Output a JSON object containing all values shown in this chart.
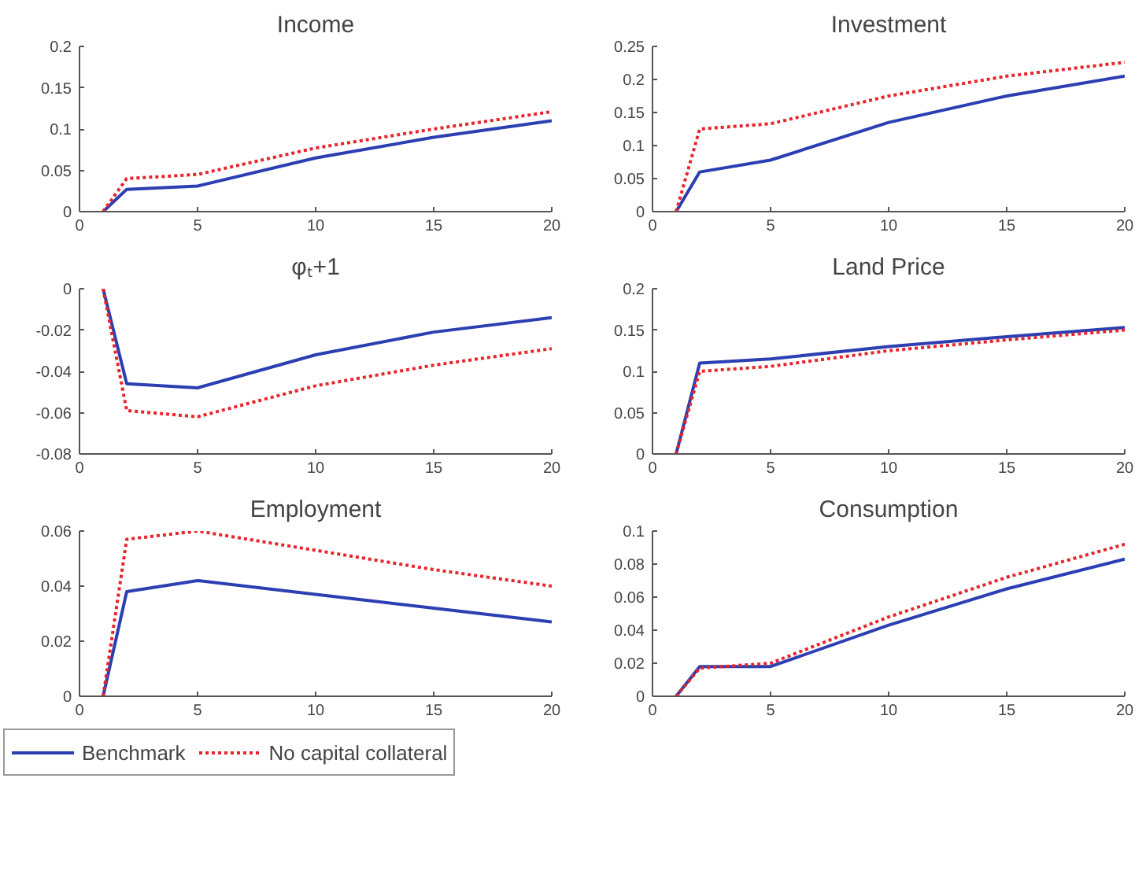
{
  "chart_data": [
    {
      "type": "line",
      "title": "Income",
      "x": [
        1,
        2,
        5,
        10,
        15,
        20
      ],
      "xlim": [
        0,
        20
      ],
      "xticks": [
        0,
        5,
        10,
        15,
        20
      ],
      "ylim": [
        0,
        0.2
      ],
      "yticks": [
        0,
        0.05,
        0.1,
        0.15,
        0.2
      ],
      "grid": false,
      "legend": false,
      "series": [
        {
          "color": "#2b3fb2",
          "line_style": "solid",
          "values": [
            0,
            0.027,
            0.031,
            0.065,
            0.09,
            0.11
          ]
        },
        {
          "color": "#e8242b",
          "line_style": "dotted",
          "values": [
            0,
            0.04,
            0.045,
            0.077,
            0.1,
            0.121
          ]
        }
      ]
    },
    {
      "type": "line",
      "title": "Investment",
      "x": [
        1,
        2,
        5,
        10,
        15,
        20
      ],
      "xlim": [
        0,
        20
      ],
      "xticks": [
        0,
        5,
        10,
        15,
        20
      ],
      "ylim": [
        0,
        0.25
      ],
      "yticks": [
        0,
        0.05,
        0.1,
        0.15,
        0.2,
        0.25
      ],
      "grid": false,
      "legend": false,
      "series": [
        {
          "color": "#2b3fb2",
          "line_style": "solid",
          "values": [
            0,
            0.06,
            0.078,
            0.135,
            0.175,
            0.205
          ]
        },
        {
          "color": "#e8242b",
          "line_style": "dotted",
          "values": [
            0,
            0.125,
            0.133,
            0.175,
            0.205,
            0.226
          ]
        }
      ]
    },
    {
      "type": "line",
      "title": "φₜ+1",
      "x": [
        1,
        2,
        5,
        10,
        15,
        20
      ],
      "xlim": [
        0,
        20
      ],
      "xticks": [
        0,
        5,
        10,
        15,
        20
      ],
      "ylim": [
        -0.08,
        0
      ],
      "yticks": [
        -0.08,
        -0.06,
        -0.04,
        -0.02,
        0
      ],
      "grid": false,
      "legend": false,
      "series": [
        {
          "color": "#2b3fb2",
          "line_style": "solid",
          "values": [
            0,
            -0.046,
            -0.048,
            -0.032,
            -0.021,
            -0.014
          ]
        },
        {
          "color": "#e8242b",
          "line_style": "dotted",
          "values": [
            0,
            -0.059,
            -0.062,
            -0.047,
            -0.037,
            -0.029
          ]
        }
      ]
    },
    {
      "type": "line",
      "title": "Land Price",
      "x": [
        1,
        2,
        5,
        10,
        15,
        20
      ],
      "xlim": [
        0,
        20
      ],
      "xticks": [
        0,
        5,
        10,
        15,
        20
      ],
      "ylim": [
        0,
        0.2
      ],
      "yticks": [
        0,
        0.05,
        0.1,
        0.15,
        0.2
      ],
      "grid": false,
      "legend": false,
      "series": [
        {
          "color": "#2b3fb2",
          "line_style": "solid",
          "values": [
            0,
            0.11,
            0.115,
            0.13,
            0.142,
            0.153
          ]
        },
        {
          "color": "#e8242b",
          "line_style": "dotted",
          "values": [
            0,
            0.1,
            0.106,
            0.125,
            0.138,
            0.15
          ]
        }
      ]
    },
    {
      "type": "line",
      "title": "Employment",
      "x": [
        1,
        2,
        5,
        10,
        15,
        20
      ],
      "xlim": [
        0,
        20
      ],
      "xticks": [
        0,
        5,
        10,
        15,
        20
      ],
      "ylim": [
        0,
        0.06
      ],
      "yticks": [
        0,
        0.02,
        0.04,
        0.06
      ],
      "grid": false,
      "legend": "bottom",
      "series": [
        {
          "name": "Benchmark",
          "color": "#2b3fb2",
          "line_style": "solid",
          "values": [
            0,
            0.038,
            0.042,
            0.037,
            0.032,
            0.027
          ]
        },
        {
          "name": "No capital collateral",
          "color": "#e8242b",
          "line_style": "dotted",
          "values": [
            0,
            0.057,
            0.06,
            0.053,
            0.046,
            0.04
          ]
        }
      ]
    },
    {
      "type": "line",
      "title": "Consumption",
      "x": [
        1,
        2,
        5,
        10,
        15,
        20
      ],
      "xlim": [
        0,
        20
      ],
      "xticks": [
        0,
        5,
        10,
        15,
        20
      ],
      "ylim": [
        0,
        0.1
      ],
      "yticks": [
        0,
        0.02,
        0.04,
        0.06,
        0.08,
        0.1
      ],
      "grid": false,
      "legend": false,
      "series": [
        {
          "color": "#2b3fb2",
          "line_style": "solid",
          "values": [
            0,
            0.018,
            0.018,
            0.043,
            0.065,
            0.083
          ]
        },
        {
          "color": "#e8242b",
          "line_style": "dotted",
          "values": [
            0,
            0.017,
            0.02,
            0.048,
            0.072,
            0.092
          ]
        }
      ]
    }
  ]
}
